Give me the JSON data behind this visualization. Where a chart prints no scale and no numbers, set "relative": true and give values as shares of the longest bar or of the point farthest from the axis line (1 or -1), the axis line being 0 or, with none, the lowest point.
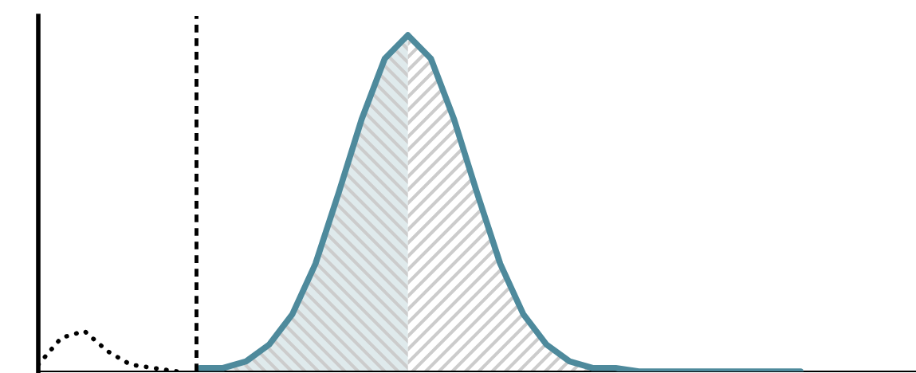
{
  "chart_data": {
    "type": "line",
    "relative": true,
    "categories": [
      null,
      null,
      null,
      null,
      null,
      null,
      null,
      null,
      null,
      null,
      null,
      null,
      null,
      null,
      null,
      null,
      null,
      null,
      null,
      null,
      null,
      null,
      null,
      null,
      null,
      null,
      null,
      null,
      null,
      null,
      null,
      null,
      null,
      null,
      null,
      null,
      null,
      null,
      null
    ],
    "series": [
      {
        "type": "area",
        "color": "#dfeaec",
        "values": [
          null,
          null,
          null,
          null,
          null,
          null,
          null,
          0.01,
          0.01,
          0.03,
          0.08,
          0.17,
          0.32,
          0.53,
          0.75,
          0.93,
          1.0,
          null,
          null,
          null,
          null,
          null,
          null,
          null,
          null,
          null,
          null,
          null,
          null,
          null,
          null,
          null,
          null,
          null,
          null,
          null,
          null,
          null,
          null
        ]
      },
      {
        "color": "#4e8a9c",
        "line_style": "solid",
        "values": [
          null,
          null,
          null,
          null,
          null,
          null,
          null,
          0.01,
          0.01,
          0.03,
          0.08,
          0.17,
          0.32,
          0.53,
          0.75,
          0.93,
          1.0,
          0.93,
          0.75,
          0.53,
          0.32,
          0.17,
          0.08,
          0.03,
          0.01,
          0.01,
          0.0,
          0.0,
          0.0,
          0.0,
          0.0,
          0.0,
          0.0,
          0.0,
          null,
          null,
          null,
          null,
          null
        ]
      },
      {
        "color": "#000000",
        "line_style": "dotted",
        "values": [
          0.02,
          0.1,
          0.12,
          0.06,
          0.02,
          0.01,
          0.0,
          null,
          null,
          null,
          null,
          null,
          null,
          null,
          null,
          null,
          null,
          null,
          null,
          null,
          null,
          null,
          null,
          null,
          null,
          null,
          null,
          null,
          null,
          null,
          null,
          null,
          null,
          null,
          null,
          null,
          null,
          null,
          null
        ]
      }
    ],
    "legend": false,
    "marker": "none"
  }
}
